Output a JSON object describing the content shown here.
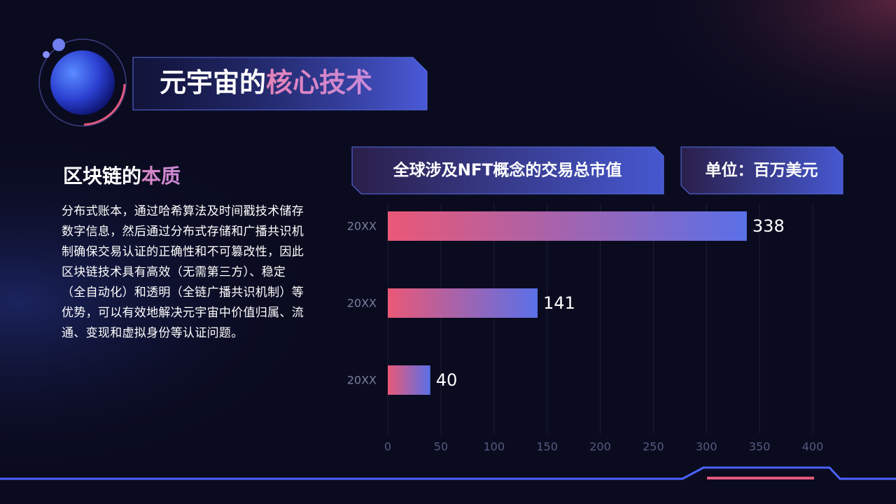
{
  "header": {
    "title_plain": "元宇宙的",
    "title_highlight": "核心技术"
  },
  "section": {
    "heading_plain": "区块链的",
    "heading_highlight": "本质",
    "body": "分布式账本，通过哈希算法及时间戳技术储存数字信息，然后通过分布式存储和广播共识机制确保交易认证的正确性和不可篡改性，因此区块链技术具有高效（无需第三方）、稳定（全自动化）和透明（全链广播共识机制）等优势，可以有效地解决元宇宙中价值归属、流通、变现和虚拟身份等认证问题。"
  },
  "chart_data": {
    "type": "barh",
    "title": "全球涉及NFT概念的交易总市值",
    "unit": "单位：百万美元",
    "categories": [
      "20XX",
      "20XX",
      "20XX"
    ],
    "values": [
      338,
      141,
      40
    ],
    "colors": [
      "#ea5876",
      "#5a70e8"
    ],
    "xlim": [
      0,
      400
    ],
    "xticks": [
      0,
      50,
      100,
      150,
      200,
      250,
      300,
      350,
      400
    ],
    "grid": true
  }
}
